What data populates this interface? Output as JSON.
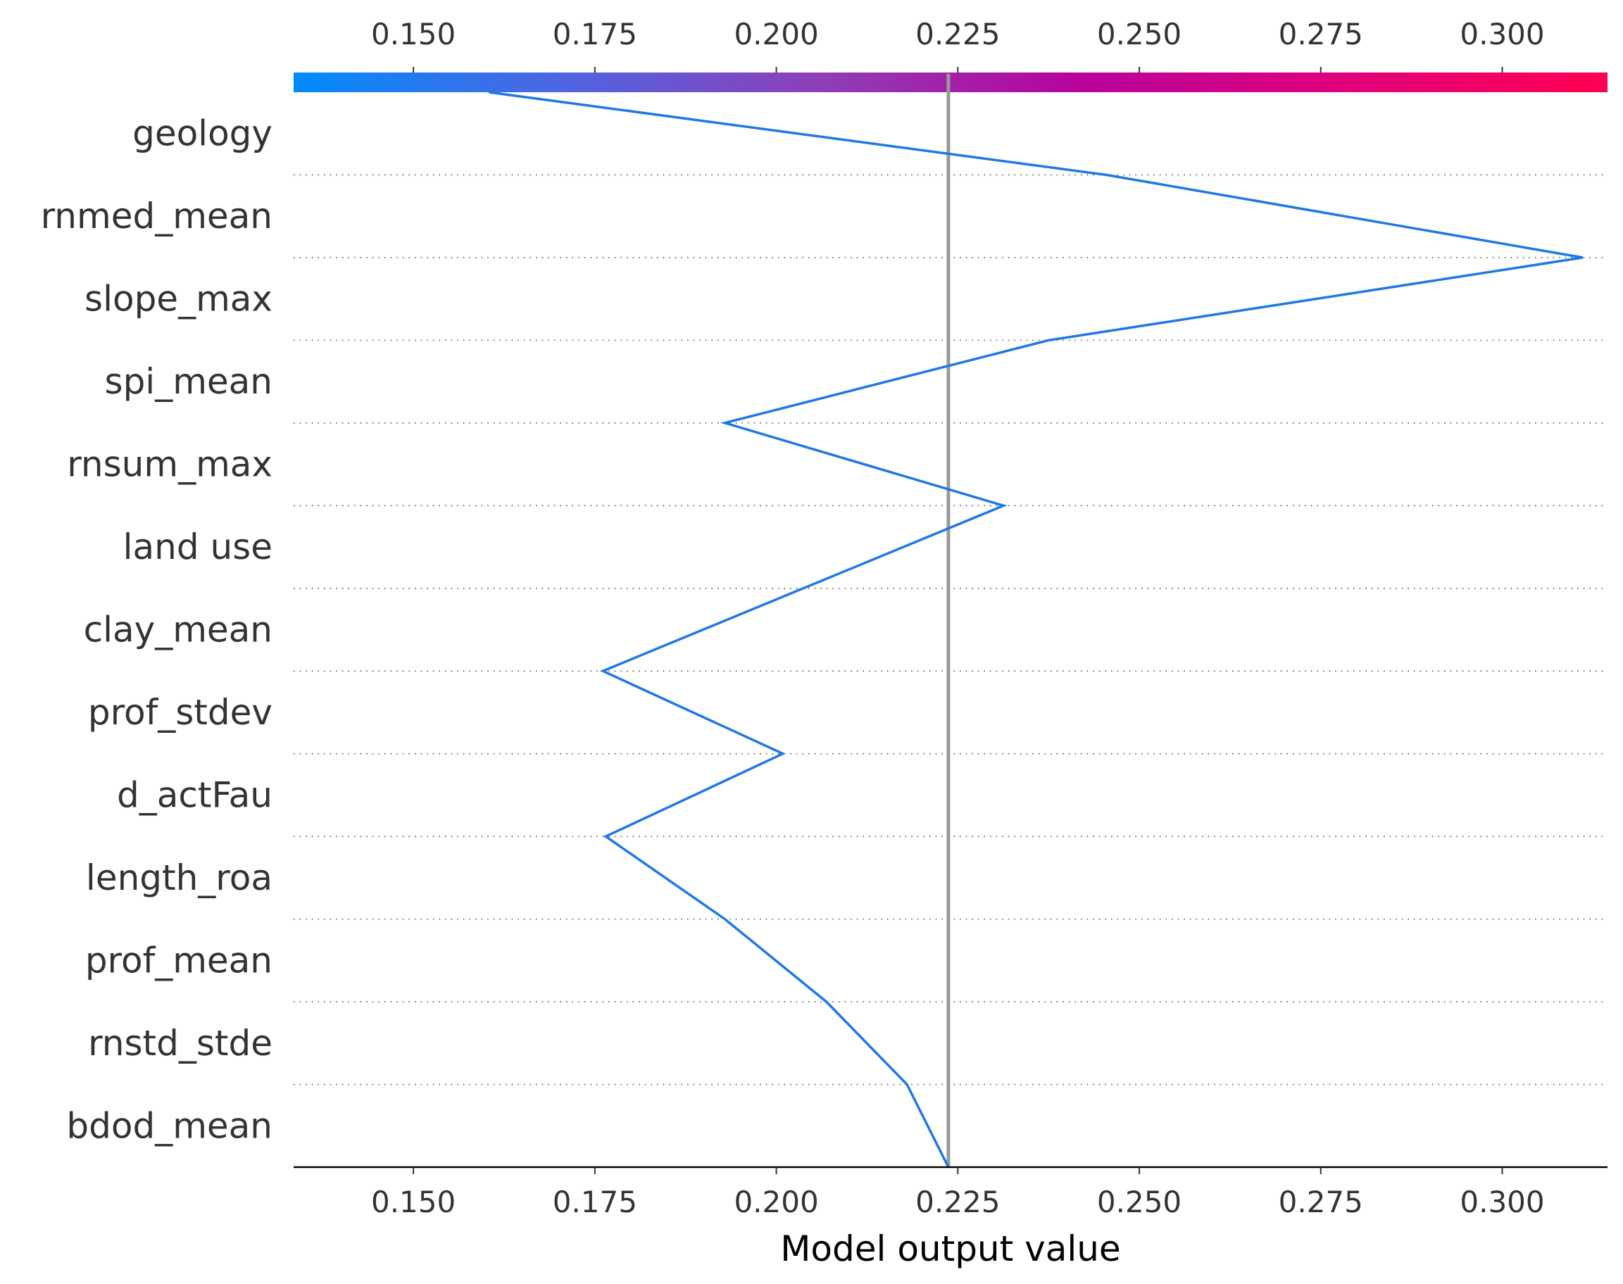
{
  "chart_data": {
    "type": "line",
    "subtype": "decision-plot",
    "xlabel": "Model output value",
    "xlim": [
      0.1335,
      0.3145
    ],
    "ticks": [
      0.15,
      0.175,
      0.2,
      0.225,
      0.25,
      0.275,
      0.3
    ],
    "tick_labels": [
      "0.150",
      "0.175",
      "0.200",
      "0.225",
      "0.250",
      "0.275",
      "0.300"
    ],
    "base_value": 0.2237,
    "features": [
      "geology",
      "rnmed_mean",
      "slope_max",
      "spi_mean",
      "rnsum_max",
      "land use",
      "clay_mean",
      "prof_stdev",
      "d_actFau",
      "length_roa",
      "prof_mean",
      "rnstd_stde",
      "bdod_mean"
    ],
    "path_values": [
      0.1604,
      0.2455,
      0.3111,
      0.2375,
      0.1929,
      0.2313,
      0.2037,
      0.1761,
      0.2009,
      0.1765,
      0.1929,
      0.2069,
      0.218,
      0.2237
    ],
    "grid": "dotted-per-feature",
    "colors": {
      "line": "#1e78e6",
      "base_line": "#999999",
      "colorbar_stops": [
        "#008bfb",
        "#4d66e2",
        "#8e3fb8",
        "#b8029b",
        "#e1007c",
        "#ff0052"
      ]
    }
  }
}
